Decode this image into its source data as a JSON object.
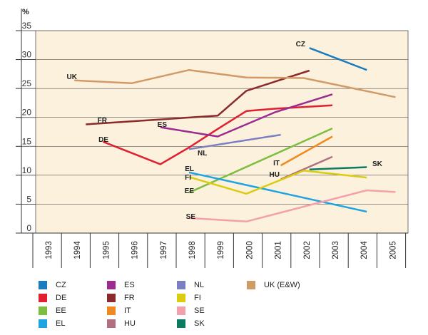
{
  "chart_data": {
    "type": "line",
    "title": "",
    "xlabel": "",
    "ylabel": "%",
    "ylim": [
      0,
      35
    ],
    "yticks": [
      "0",
      "5",
      "10",
      "15",
      "20",
      "25",
      "30",
      "35"
    ],
    "x": [
      "1993",
      "1994",
      "1995",
      "1996",
      "1997",
      "1998",
      "1999",
      "2000",
      "2001",
      "2002",
      "2003",
      "2004",
      "2005"
    ],
    "background_color": "#fbf1dc",
    "grid": true,
    "legend_position": "bottom",
    "series": [
      {
        "name": "CZ",
        "label": "CZ",
        "color": "#1a7cbf",
        "points": [
          [
            2002.2,
            32.0
          ],
          [
            2004.2,
            28.2
          ]
        ]
      },
      {
        "name": "DE",
        "label": "DE",
        "color": "#e02030",
        "points": [
          [
            1995.0,
            15.8
          ],
          [
            1997.0,
            11.9
          ],
          [
            1998.0,
            14.8
          ],
          [
            1999.0,
            18.0
          ],
          [
            2000.0,
            21.1
          ],
          [
            2001.0,
            21.5
          ],
          [
            2003.0,
            22.1
          ]
        ]
      },
      {
        "name": "EE",
        "label": "EE",
        "color": "#7dbd40",
        "points": [
          [
            1998.0,
            7.0
          ],
          [
            2003.0,
            18.1
          ]
        ]
      },
      {
        "name": "EL",
        "label": "EL",
        "color": "#1ea4e0",
        "points": [
          [
            1998.0,
            10.5
          ],
          [
            2004.2,
            3.7
          ]
        ]
      },
      {
        "name": "ES",
        "label": "ES",
        "color": "#9a2c91",
        "points": [
          [
            1997.0,
            18.3
          ],
          [
            1999.0,
            16.7
          ],
          [
            2001.0,
            20.9
          ],
          [
            2003.0,
            24.0
          ]
        ]
      },
      {
        "name": "FR",
        "label": "FR",
        "color": "#8b2a2a",
        "points": [
          [
            1994.4,
            18.8
          ],
          [
            1999.0,
            20.3
          ],
          [
            2000.0,
            24.6
          ],
          [
            2002.2,
            28.1
          ]
        ]
      },
      {
        "name": "IT",
        "label": "IT",
        "color": "#f08a20",
        "points": [
          [
            2001.2,
            11.7
          ],
          [
            2003.0,
            16.7
          ]
        ]
      },
      {
        "name": "HU",
        "label": "HU",
        "color": "#b07080",
        "points": [
          [
            2001.2,
            9.3
          ],
          [
            2003.0,
            13.2
          ]
        ]
      },
      {
        "name": "NL",
        "label": "NL",
        "color": "#7b7fc2",
        "points": [
          [
            1998.0,
            14.5
          ],
          [
            2001.2,
            17.0
          ]
        ]
      },
      {
        "name": "FI",
        "label": "FI",
        "color": "#dccc10",
        "points": [
          [
            1998.0,
            9.7
          ],
          [
            2000.0,
            6.8
          ],
          [
            2002.0,
            10.8
          ],
          [
            2004.2,
            9.6
          ]
        ]
      },
      {
        "name": "SE",
        "label": "SE",
        "color": "#f4a0aa",
        "points": [
          [
            1998.0,
            2.6
          ],
          [
            2000.0,
            2.0
          ],
          [
            2004.2,
            7.4
          ],
          [
            2005.2,
            7.1
          ]
        ]
      },
      {
        "name": "SK",
        "label": "SK",
        "color": "#0a7a60",
        "points": [
          [
            2002.2,
            11.0
          ],
          [
            2004.2,
            11.4
          ]
        ]
      },
      {
        "name": "UK (E&W)",
        "label": "UK",
        "color": "#d29a68",
        "points": [
          [
            1994.0,
            26.4
          ],
          [
            1996.0,
            25.9
          ],
          [
            1998.0,
            28.2
          ],
          [
            2000.0,
            26.9
          ],
          [
            2002.0,
            26.8
          ],
          [
            2005.2,
            23.5
          ]
        ]
      }
    ],
    "legend": [
      [
        "CZ",
        "ES",
        "NL",
        "UK (E&W)"
      ],
      [
        "DE",
        "FR",
        "FI"
      ],
      [
        "EE",
        "IT",
        "SE"
      ],
      [
        "EL",
        "HU",
        "SK"
      ]
    ]
  }
}
